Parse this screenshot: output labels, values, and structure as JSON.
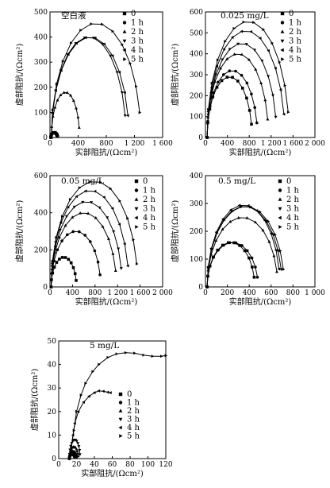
{
  "figure": {
    "width": 416,
    "height": 614
  },
  "legend_labels": [
    "0",
    "1 h",
    "2 h",
    "3 h",
    "4 h",
    "5 h"
  ],
  "axis_labels": {
    "x": "实部阻抗/(Ωcm²)",
    "y": "虚部阻抗/(Ωcm²)"
  },
  "chart_data": [
    {
      "type": "scatter",
      "title": "空白液",
      "xlabel": "实部阻抗/(Ωcm²)",
      "ylabel": "虚部阻抗/(Ωcm²)",
      "xlim": [
        0,
        1600
      ],
      "ylim": [
        0,
        500
      ],
      "xticks": [
        0,
        400,
        800,
        1200,
        1600
      ],
      "xtick_labels": [
        "0",
        "400",
        "800",
        "1 200",
        "1 600"
      ],
      "yticks": [
        0,
        100,
        200,
        300,
        400,
        500
      ],
      "ytick_labels": [
        "0",
        "100",
        "200",
        "300",
        "400",
        "500"
      ],
      "legend_position": "top-right",
      "series": [
        {
          "name": "0",
          "arc": [
            10,
            110,
            20
          ],
          "marker": "square"
        },
        {
          "name": "1 h",
          "arc": [
            12,
            100,
            18
          ],
          "marker": "circle"
        },
        {
          "name": "2 h",
          "arc": [
            20,
            420,
            180
          ],
          "marker": "triangle-up"
        },
        {
          "name": "3 h",
          "arc": [
            20,
            1080,
            400
          ],
          "marker": "triangle-down"
        },
        {
          "name": "4 h",
          "arc": [
            20,
            1120,
            400
          ],
          "marker": "triangle-left"
        },
        {
          "name": "5 h",
          "arc": [
            20,
            1290,
            455
          ],
          "marker": "triangle-right"
        }
      ]
    },
    {
      "type": "scatter",
      "title": "0.025 mg/L",
      "xlabel": "实部阻抗/(Ωcm²)",
      "ylabel": "虚部阻抗/(Ωcm²)",
      "xlim": [
        0,
        2000
      ],
      "ylim": [
        0,
        600
      ],
      "xticks": [
        0,
        400,
        800,
        1200,
        1600,
        2000
      ],
      "xtick_labels": [
        "0",
        "400",
        "800",
        "1 200",
        "1 600",
        "2 000"
      ],
      "yticks": [
        0,
        100,
        200,
        300,
        400,
        500,
        600
      ],
      "ytick_labels": [
        "0",
        "100",
        "200",
        "300",
        "400",
        "500",
        "600"
      ],
      "legend_position": "top-right",
      "series": [
        {
          "name": "0",
          "arc": [
            30,
            850,
            290
          ],
          "marker": "square"
        },
        {
          "name": "1 h",
          "arc": [
            30,
            950,
            320
          ],
          "marker": "circle"
        },
        {
          "name": "2 h",
          "arc": [
            30,
            1150,
            400
          ],
          "marker": "triangle-up"
        },
        {
          "name": "3 h",
          "arc": [
            30,
            1300,
            450
          ],
          "marker": "triangle-down"
        },
        {
          "name": "4 h",
          "arc": [
            30,
            1450,
            510
          ],
          "marker": "triangle-left"
        },
        {
          "name": "5 h",
          "arc": [
            30,
            1530,
            555
          ],
          "marker": "triangle-right"
        }
      ]
    },
    {
      "type": "scatter",
      "title": "0.05 mg/L",
      "xlabel": "实部阻抗/(Ωcm²)",
      "ylabel": "虚部阻抗/(Ωcm²)",
      "xlim": [
        0,
        2000
      ],
      "ylim": [
        0,
        600
      ],
      "xticks": [
        0,
        400,
        800,
        1200,
        1600,
        2000
      ],
      "xtick_labels": [
        "0",
        "400",
        "800",
        "1 200",
        "1 600",
        "2 000"
      ],
      "yticks": [
        0,
        200,
        400,
        600
      ],
      "ytick_labels": [
        "0",
        "200",
        "400",
        "600"
      ],
      "legend_position": "right",
      "series": [
        {
          "name": "0",
          "arc": [
            20,
            470,
            160
          ],
          "marker": "square"
        },
        {
          "name": "1 h",
          "arc": [
            20,
            900,
            300
          ],
          "marker": "circle"
        },
        {
          "name": "2 h",
          "arc": [
            20,
            1180,
            400
          ],
          "marker": "triangle-up"
        },
        {
          "name": "3 h",
          "arc": [
            20,
            1280,
            460
          ],
          "marker": "triangle-down"
        },
        {
          "name": "4 h",
          "arc": [
            20,
            1400,
            520
          ],
          "marker": "triangle-left"
        },
        {
          "name": "5 h",
          "arc": [
            20,
            1560,
            570
          ],
          "marker": "triangle-right"
        }
      ]
    },
    {
      "type": "scatter",
      "title": "0.5 mg/L",
      "xlabel": "实部阻抗/(Ωcm²)",
      "ylabel": "虚部阻抗/(Ωcm²)",
      "xlim": [
        0,
        1000
      ],
      "ylim": [
        0,
        400
      ],
      "xticks": [
        0,
        200,
        400,
        600,
        800,
        1000
      ],
      "xtick_labels": [
        "0",
        "200",
        "400",
        "600",
        "800",
        "1 000"
      ],
      "yticks": [
        0,
        100,
        200,
        300,
        400
      ],
      "ytick_labels": [
        "0",
        "100",
        "200",
        "300",
        "400"
      ],
      "legend_position": "top-right",
      "series": [
        {
          "name": "0",
          "arc": [
            15,
            450,
            160
          ],
          "marker": "square"
        },
        {
          "name": "1 h",
          "arc": [
            15,
            480,
            160
          ],
          "marker": "circle"
        },
        {
          "name": "2 h",
          "arc": [
            15,
            660,
            250
          ],
          "marker": "triangle-up"
        },
        {
          "name": "3 h",
          "arc": [
            15,
            700,
            290
          ],
          "marker": "triangle-down"
        },
        {
          "name": "4 h",
          "arc": [
            15,
            680,
            295
          ],
          "marker": "triangle-left"
        },
        {
          "name": "5 h",
          "arc": [
            15,
            720,
            290
          ],
          "marker": "triangle-right"
        }
      ]
    },
    {
      "type": "scatter",
      "title": "5 mg/L",
      "xlabel": "实部阻抗/(Ωcm²)",
      "ylabel": "虚部阻抗/(Ωcm²)",
      "xlim": [
        0,
        120
      ],
      "ylim": [
        0,
        50
      ],
      "xticks": [
        0,
        20,
        40,
        60,
        80,
        100,
        120
      ],
      "xtick_labels": [
        "0",
        "20",
        "40",
        "60",
        "80",
        "100",
        "120"
      ],
      "yticks": [
        0,
        10,
        20,
        30,
        40,
        50
      ],
      "ytick_labels": [
        "0",
        "10",
        "20",
        "30",
        "40",
        "50"
      ],
      "legend_position": "center-right",
      "series": [
        {
          "name": "0",
          "arc": [
            12,
            18,
            2
          ],
          "marker": "square"
        },
        {
          "name": "1 h",
          "arc": [
            12,
            20,
            3
          ],
          "marker": "circle"
        },
        {
          "name": "2 h",
          "arc": [
            12,
            22,
            5
          ],
          "marker": "triangle-up"
        },
        {
          "name": "3 h",
          "arc": [
            12,
            24,
            8
          ],
          "marker": "triangle-down"
        },
        {
          "name": "4 h",
          "x": [
            14,
            16,
            18,
            22,
            28,
            34,
            40,
            45,
            50,
            55,
            58
          ],
          "y": [
            4,
            10,
            15,
            20,
            24,
            26.5,
            28,
            28.8,
            28.6,
            28.2,
            28
          ],
          "marker": "triangle-left"
        },
        {
          "name": "5 h",
          "x": [
            14,
            17,
            20,
            25,
            30,
            38,
            45,
            55,
            65,
            75,
            85,
            95,
            105,
            115,
            120
          ],
          "y": [
            5,
            12,
            20,
            27,
            32,
            37,
            40,
            43,
            44.5,
            45,
            44.8,
            44,
            43.5,
            43.5,
            43.8
          ],
          "marker": "triangle-right"
        }
      ]
    }
  ]
}
